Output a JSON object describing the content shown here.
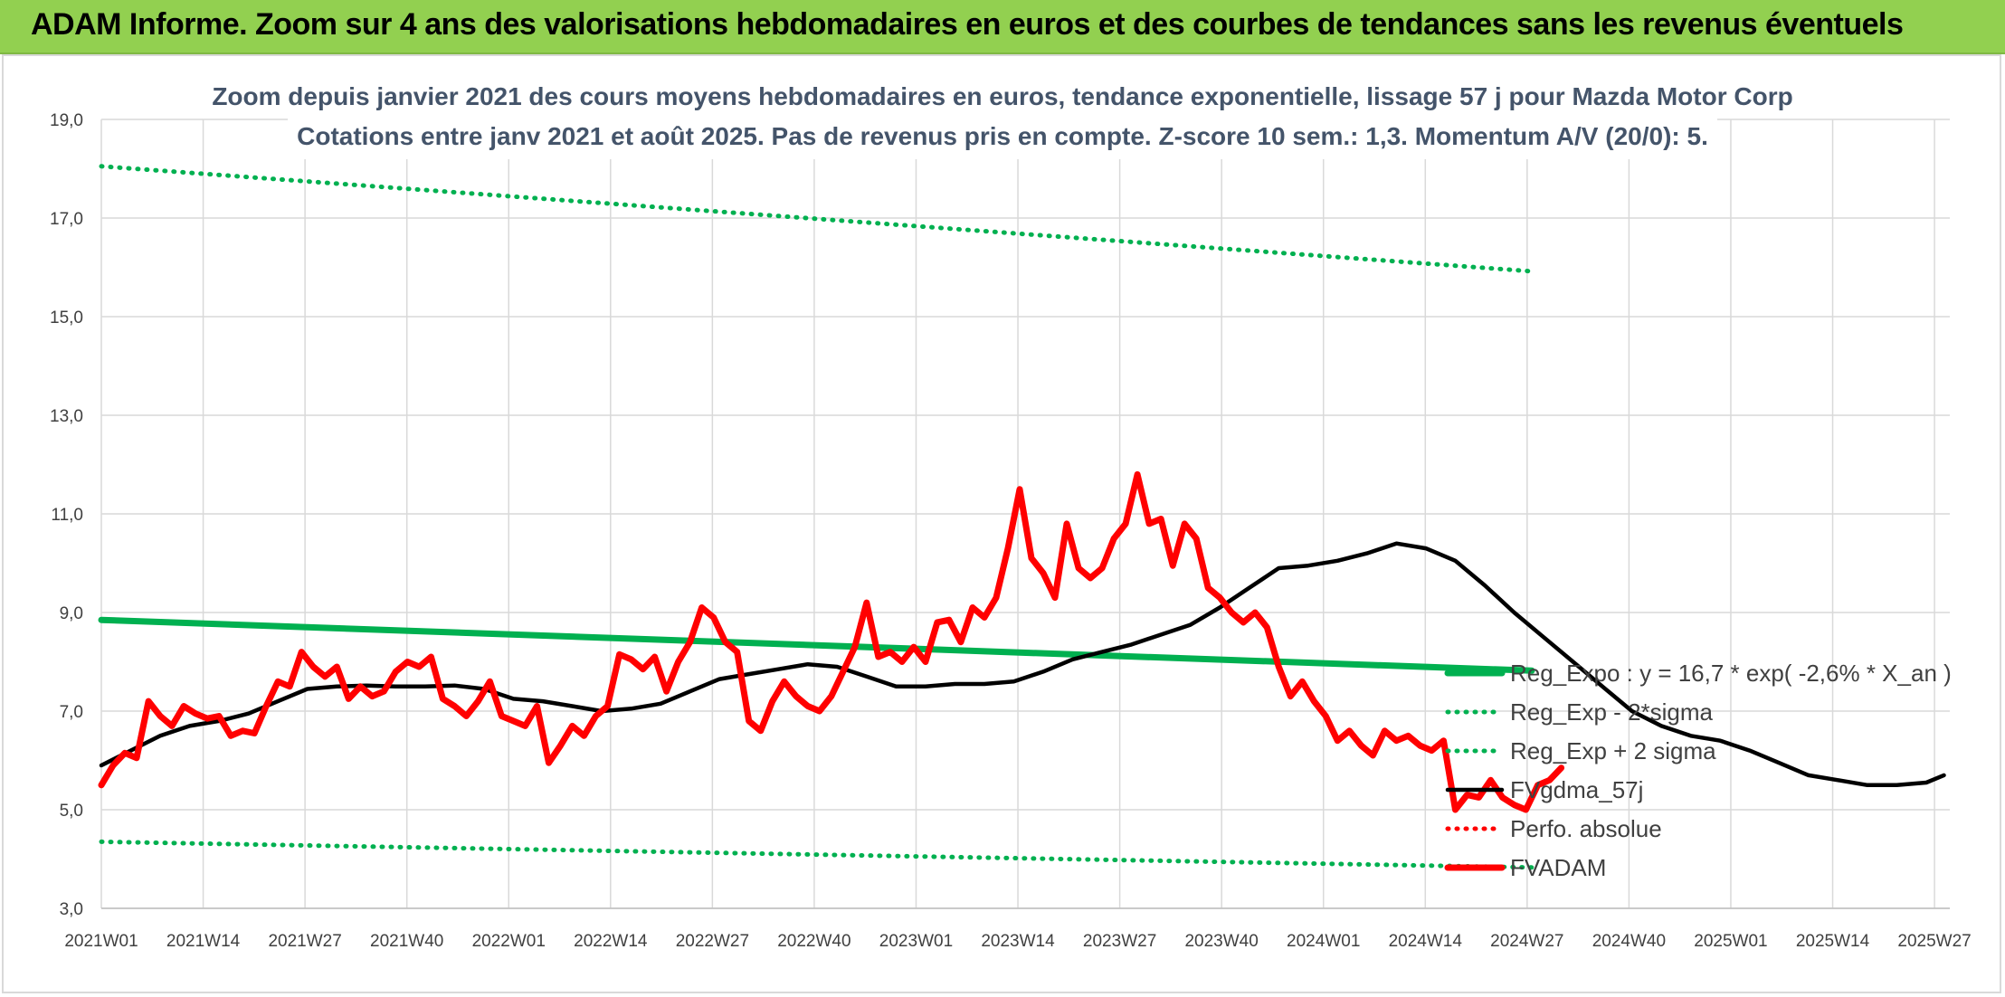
{
  "banner": {
    "title": "ADAM Informe. Zoom sur 4 ans des valorisations hebdomadaires en euros et des courbes de tendances sans les revenus éventuels"
  },
  "colors": {
    "banner": "#92d050",
    "reg_expo": "#00b050",
    "fvgdma": "#000000",
    "perfo": "#ff0000",
    "fvadam": "#ff0000"
  },
  "chart_data": {
    "type": "line",
    "title_line1": "Zoom depuis janvier 2021 des cours moyens hebdomadaires en euros, tendance exponentielle, lissage 57 j pour Mazda Motor Corp",
    "title_line2": "Cotations entre janv 2021 et août 2025. Pas de revenus pris en compte. Z-score 10 sem.: 1,3. Momentum A/V (20/0): 5.",
    "ylim": [
      3,
      19
    ],
    "yticks": [
      "3,0",
      "5,0",
      "7,0",
      "9,0",
      "11,0",
      "13,0",
      "15,0",
      "17,0",
      "19,0"
    ],
    "grid": true,
    "legend_position": "bottom-right",
    "x_tick_labels": [
      "2021W01",
      "2021W14",
      "2021W27",
      "2021W40",
      "2022W01",
      "2022W14",
      "2022W27",
      "2022W40",
      "2023W01",
      "2023W14",
      "2023W27",
      "2023W40",
      "2024W01",
      "2024W14",
      "2024W27",
      "2024W40",
      "2025W01",
      "2025W14",
      "2025W27"
    ],
    "series": [
      {
        "name": "Reg_Expo : y = 16,7 * exp( -2,6% * X_an )",
        "style": "solid-thick",
        "color": "#00b050",
        "values": [
          [
            0,
            8.85
          ],
          [
            243,
            7.82
          ]
        ]
      },
      {
        "name": "Reg_Exp - 2*sigma",
        "style": "dotted",
        "color": "#00b050",
        "values": [
          [
            0,
            4.35
          ],
          [
            243,
            3.83
          ]
        ]
      },
      {
        "name": "Reg_Exp + 2 sigma",
        "style": "dotted",
        "color": "#00b050",
        "values": [
          [
            0,
            18.05
          ],
          [
            243,
            15.92
          ]
        ]
      },
      {
        "name": "FVgdma_57j",
        "style": "solid",
        "color": "#000000",
        "values": [
          [
            0,
            5.9
          ],
          [
            5,
            6.2
          ],
          [
            10,
            6.5
          ],
          [
            15,
            6.7
          ],
          [
            20,
            6.8
          ],
          [
            25,
            6.95
          ],
          [
            30,
            7.2
          ],
          [
            35,
            7.45
          ],
          [
            40,
            7.5
          ],
          [
            45,
            7.52
          ],
          [
            50,
            7.5
          ],
          [
            55,
            7.5
          ],
          [
            60,
            7.52
          ],
          [
            65,
            7.45
          ],
          [
            70,
            7.25
          ],
          [
            75,
            7.2
          ],
          [
            80,
            7.1
          ],
          [
            85,
            7.0
          ],
          [
            90,
            7.05
          ],
          [
            95,
            7.15
          ],
          [
            100,
            7.4
          ],
          [
            105,
            7.65
          ],
          [
            110,
            7.75
          ],
          [
            115,
            7.85
          ],
          [
            120,
            7.95
          ],
          [
            125,
            7.9
          ],
          [
            130,
            7.7
          ],
          [
            135,
            7.5
          ],
          [
            140,
            7.5
          ],
          [
            145,
            7.55
          ],
          [
            150,
            7.55
          ],
          [
            155,
            7.6
          ],
          [
            160,
            7.8
          ],
          [
            165,
            8.05
          ],
          [
            170,
            8.2
          ],
          [
            175,
            8.35
          ],
          [
            180,
            8.55
          ],
          [
            185,
            8.75
          ],
          [
            190,
            9.1
          ],
          [
            195,
            9.5
          ],
          [
            200,
            9.9
          ],
          [
            205,
            9.95
          ],
          [
            210,
            10.05
          ],
          [
            215,
            10.2
          ],
          [
            220,
            10.4
          ],
          [
            225,
            10.3
          ],
          [
            230,
            10.05
          ],
          [
            235,
            9.55
          ],
          [
            240,
            9.0
          ],
          [
            245,
            8.5
          ],
          [
            250,
            8.0
          ],
          [
            255,
            7.5
          ],
          [
            260,
            7.0
          ],
          [
            265,
            6.7
          ],
          [
            270,
            6.5
          ],
          [
            275,
            6.4
          ],
          [
            280,
            6.2
          ],
          [
            285,
            5.95
          ],
          [
            290,
            5.7
          ],
          [
            295,
            5.6
          ],
          [
            300,
            5.5
          ],
          [
            305,
            5.5
          ],
          [
            310,
            5.55
          ],
          [
            313,
            5.7
          ]
        ]
      },
      {
        "name": "Perfo. absolue",
        "style": "dotted",
        "color": "#ff0000",
        "values": []
      },
      {
        "name": "FVADAM",
        "style": "solid-thick",
        "color": "#ff0000",
        "values": [
          [
            0,
            5.5
          ],
          [
            2,
            5.9
          ],
          [
            4,
            6.15
          ],
          [
            6,
            6.05
          ],
          [
            8,
            7.2
          ],
          [
            10,
            6.9
          ],
          [
            12,
            6.7
          ],
          [
            14,
            7.1
          ],
          [
            16,
            6.95
          ],
          [
            18,
            6.85
          ],
          [
            20,
            6.9
          ],
          [
            22,
            6.5
          ],
          [
            24,
            6.6
          ],
          [
            26,
            6.55
          ],
          [
            28,
            7.1
          ],
          [
            30,
            7.6
          ],
          [
            32,
            7.5
          ],
          [
            34,
            8.2
          ],
          [
            36,
            7.9
          ],
          [
            38,
            7.7
          ],
          [
            40,
            7.9
          ],
          [
            42,
            7.25
          ],
          [
            44,
            7.5
          ],
          [
            46,
            7.3
          ],
          [
            48,
            7.4
          ],
          [
            50,
            7.8
          ],
          [
            52,
            8.0
          ],
          [
            54,
            7.9
          ],
          [
            56,
            8.1
          ],
          [
            58,
            7.25
          ],
          [
            60,
            7.1
          ],
          [
            62,
            6.9
          ],
          [
            64,
            7.2
          ],
          [
            66,
            7.6
          ],
          [
            68,
            6.9
          ],
          [
            70,
            6.8
          ],
          [
            72,
            6.7
          ],
          [
            74,
            7.1
          ],
          [
            76,
            5.95
          ],
          [
            78,
            6.3
          ],
          [
            80,
            6.7
          ],
          [
            82,
            6.5
          ],
          [
            84,
            6.9
          ],
          [
            86,
            7.1
          ],
          [
            88,
            8.15
          ],
          [
            90,
            8.05
          ],
          [
            92,
            7.85
          ],
          [
            94,
            8.1
          ],
          [
            96,
            7.4
          ],
          [
            98,
            8.0
          ],
          [
            100,
            8.4
          ],
          [
            102,
            9.1
          ],
          [
            104,
            8.9
          ],
          [
            106,
            8.4
          ],
          [
            108,
            8.2
          ],
          [
            110,
            6.8
          ],
          [
            112,
            6.6
          ],
          [
            114,
            7.2
          ],
          [
            116,
            7.6
          ],
          [
            118,
            7.3
          ],
          [
            120,
            7.1
          ],
          [
            122,
            7.0
          ],
          [
            124,
            7.3
          ],
          [
            126,
            7.8
          ],
          [
            128,
            8.3
          ],
          [
            130,
            9.2
          ],
          [
            132,
            8.1
          ],
          [
            134,
            8.2
          ],
          [
            136,
            8.0
          ],
          [
            138,
            8.3
          ],
          [
            140,
            8.0
          ],
          [
            142,
            8.8
          ],
          [
            144,
            8.85
          ],
          [
            146,
            8.4
          ],
          [
            148,
            9.1
          ],
          [
            150,
            8.9
          ],
          [
            152,
            9.3
          ],
          [
            154,
            10.3
          ],
          [
            156,
            11.5
          ],
          [
            158,
            10.1
          ],
          [
            160,
            9.8
          ],
          [
            162,
            9.3
          ],
          [
            164,
            10.8
          ],
          [
            166,
            9.9
          ],
          [
            168,
            9.7
          ],
          [
            170,
            9.9
          ],
          [
            172,
            10.5
          ],
          [
            174,
            10.8
          ],
          [
            176,
            11.8
          ],
          [
            178,
            10.8
          ],
          [
            180,
            10.9
          ],
          [
            182,
            9.95
          ],
          [
            184,
            10.8
          ],
          [
            186,
            10.5
          ],
          [
            188,
            9.5
          ],
          [
            190,
            9.3
          ],
          [
            192,
            9.0
          ],
          [
            194,
            8.8
          ],
          [
            196,
            9.0
          ],
          [
            198,
            8.7
          ],
          [
            200,
            7.9
          ],
          [
            202,
            7.3
          ],
          [
            204,
            7.6
          ],
          [
            206,
            7.2
          ],
          [
            208,
            6.9
          ],
          [
            210,
            6.4
          ],
          [
            212,
            6.6
          ],
          [
            214,
            6.3
          ],
          [
            216,
            6.1
          ],
          [
            218,
            6.6
          ],
          [
            220,
            6.4
          ],
          [
            222,
            6.5
          ],
          [
            224,
            6.3
          ],
          [
            226,
            6.2
          ],
          [
            228,
            6.4
          ],
          [
            230,
            5.0
          ],
          [
            232,
            5.3
          ],
          [
            234,
            5.25
          ],
          [
            236,
            5.6
          ],
          [
            238,
            5.25
          ],
          [
            240,
            5.1
          ],
          [
            242,
            5.0
          ],
          [
            244,
            5.5
          ],
          [
            246,
            5.6
          ],
          [
            248,
            5.85
          ]
        ]
      }
    ]
  }
}
